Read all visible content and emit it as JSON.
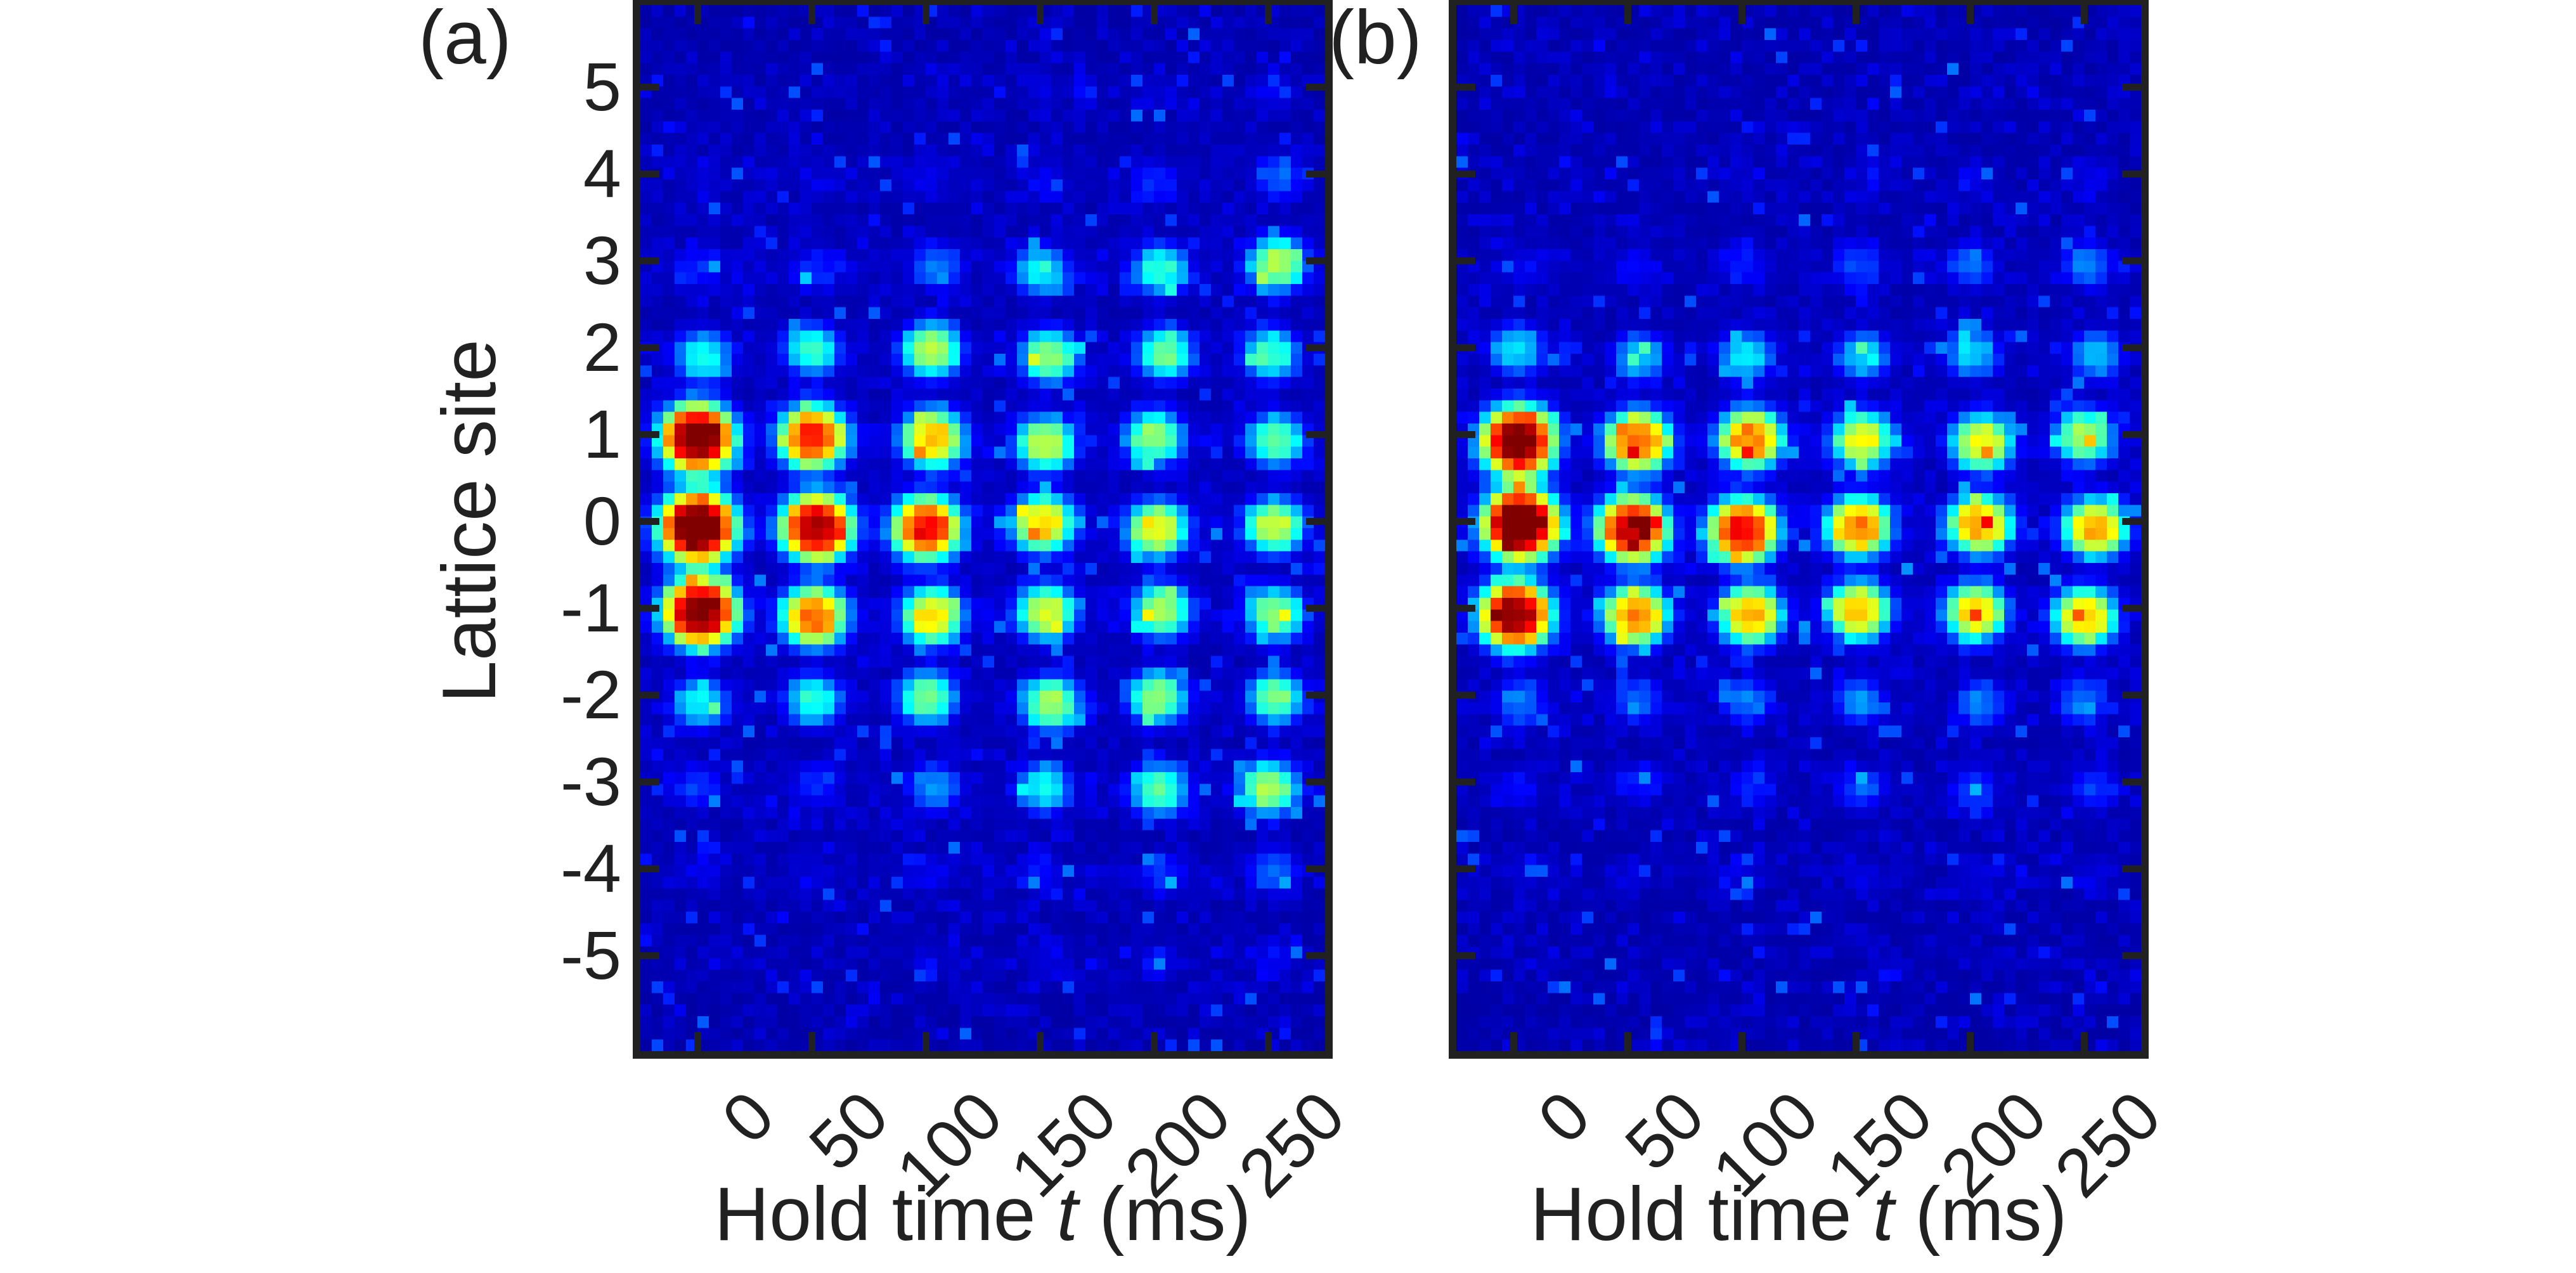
{
  "figure": {
    "panel_a": {
      "label": "(a)"
    },
    "panel_b": {
      "label": "(b)"
    },
    "y_axis_label": "Lattice site",
    "x_axis_label": {
      "prefix": "Hold time ",
      "variable": "t",
      "suffix": " (ms)"
    },
    "y_tick_labels": [
      "5",
      "4",
      "3",
      "2",
      "1",
      "0",
      "-1",
      "-2",
      "-3",
      "-4",
      "-5"
    ],
    "x_tick_labels": [
      "0",
      "50",
      "100",
      "150",
      "200",
      "250"
    ],
    "colors": {
      "text": "#212121",
      "axis": "#212121",
      "colormap_background": "#000d85",
      "colormap_peak": "#800000"
    }
  },
  "chart_data": [
    {
      "type": "heatmap",
      "title": "(a)",
      "xlabel": "Hold time t (ms)",
      "ylabel": "Lattice site",
      "x": [
        0,
        50,
        100,
        150,
        200,
        250
      ],
      "y": [
        5,
        4,
        3,
        2,
        1,
        0,
        -1,
        -2,
        -3,
        -4,
        -5
      ],
      "colormap": "jet",
      "grid": false,
      "legend_position": "none",
      "values": [
        [
          0.02,
          0.02,
          0.02,
          0.03,
          0.03,
          0.05
        ],
        [
          0.03,
          0.03,
          0.04,
          0.05,
          0.09,
          0.15
        ],
        [
          0.08,
          0.09,
          0.18,
          0.3,
          0.34,
          0.46
        ],
        [
          0.32,
          0.35,
          0.48,
          0.44,
          0.4,
          0.36
        ],
        [
          0.95,
          0.76,
          0.6,
          0.48,
          0.44,
          0.4
        ],
        [
          1.0,
          0.88,
          0.78,
          0.58,
          0.53,
          0.48
        ],
        [
          0.93,
          0.68,
          0.56,
          0.5,
          0.46,
          0.43
        ],
        [
          0.3,
          0.34,
          0.42,
          0.46,
          0.44,
          0.4
        ],
        [
          0.1,
          0.1,
          0.2,
          0.3,
          0.38,
          0.46
        ],
        [
          0.03,
          0.03,
          0.05,
          0.07,
          0.1,
          0.16
        ],
        [
          0.02,
          0.02,
          0.03,
          0.04,
          0.05,
          0.06
        ]
      ]
    },
    {
      "type": "heatmap",
      "title": "(b)",
      "xlabel": "Hold time t (ms)",
      "ylabel": "Lattice site",
      "x": [
        0,
        50,
        100,
        150,
        200,
        250
      ],
      "y": [
        5,
        4,
        3,
        2,
        1,
        0,
        -1,
        -2,
        -3,
        -4,
        -5
      ],
      "colormap": "jet",
      "grid": false,
      "legend_position": "none",
      "values": [
        [
          0.02,
          0.02,
          0.02,
          0.02,
          0.02,
          0.02
        ],
        [
          0.02,
          0.02,
          0.03,
          0.03,
          0.04,
          0.05
        ],
        [
          0.05,
          0.06,
          0.09,
          0.13,
          0.16,
          0.18
        ],
        [
          0.28,
          0.26,
          0.29,
          0.27,
          0.26,
          0.25
        ],
        [
          0.95,
          0.7,
          0.66,
          0.52,
          0.54,
          0.46
        ],
        [
          1.0,
          0.85,
          0.8,
          0.66,
          0.63,
          0.62
        ],
        [
          0.9,
          0.66,
          0.62,
          0.6,
          0.57,
          0.6
        ],
        [
          0.17,
          0.16,
          0.17,
          0.19,
          0.18,
          0.17
        ],
        [
          0.07,
          0.07,
          0.09,
          0.13,
          0.13,
          0.11
        ],
        [
          0.03,
          0.03,
          0.03,
          0.04,
          0.04,
          0.04
        ],
        [
          0.02,
          0.02,
          0.02,
          0.02,
          0.02,
          0.02
        ]
      ]
    }
  ]
}
